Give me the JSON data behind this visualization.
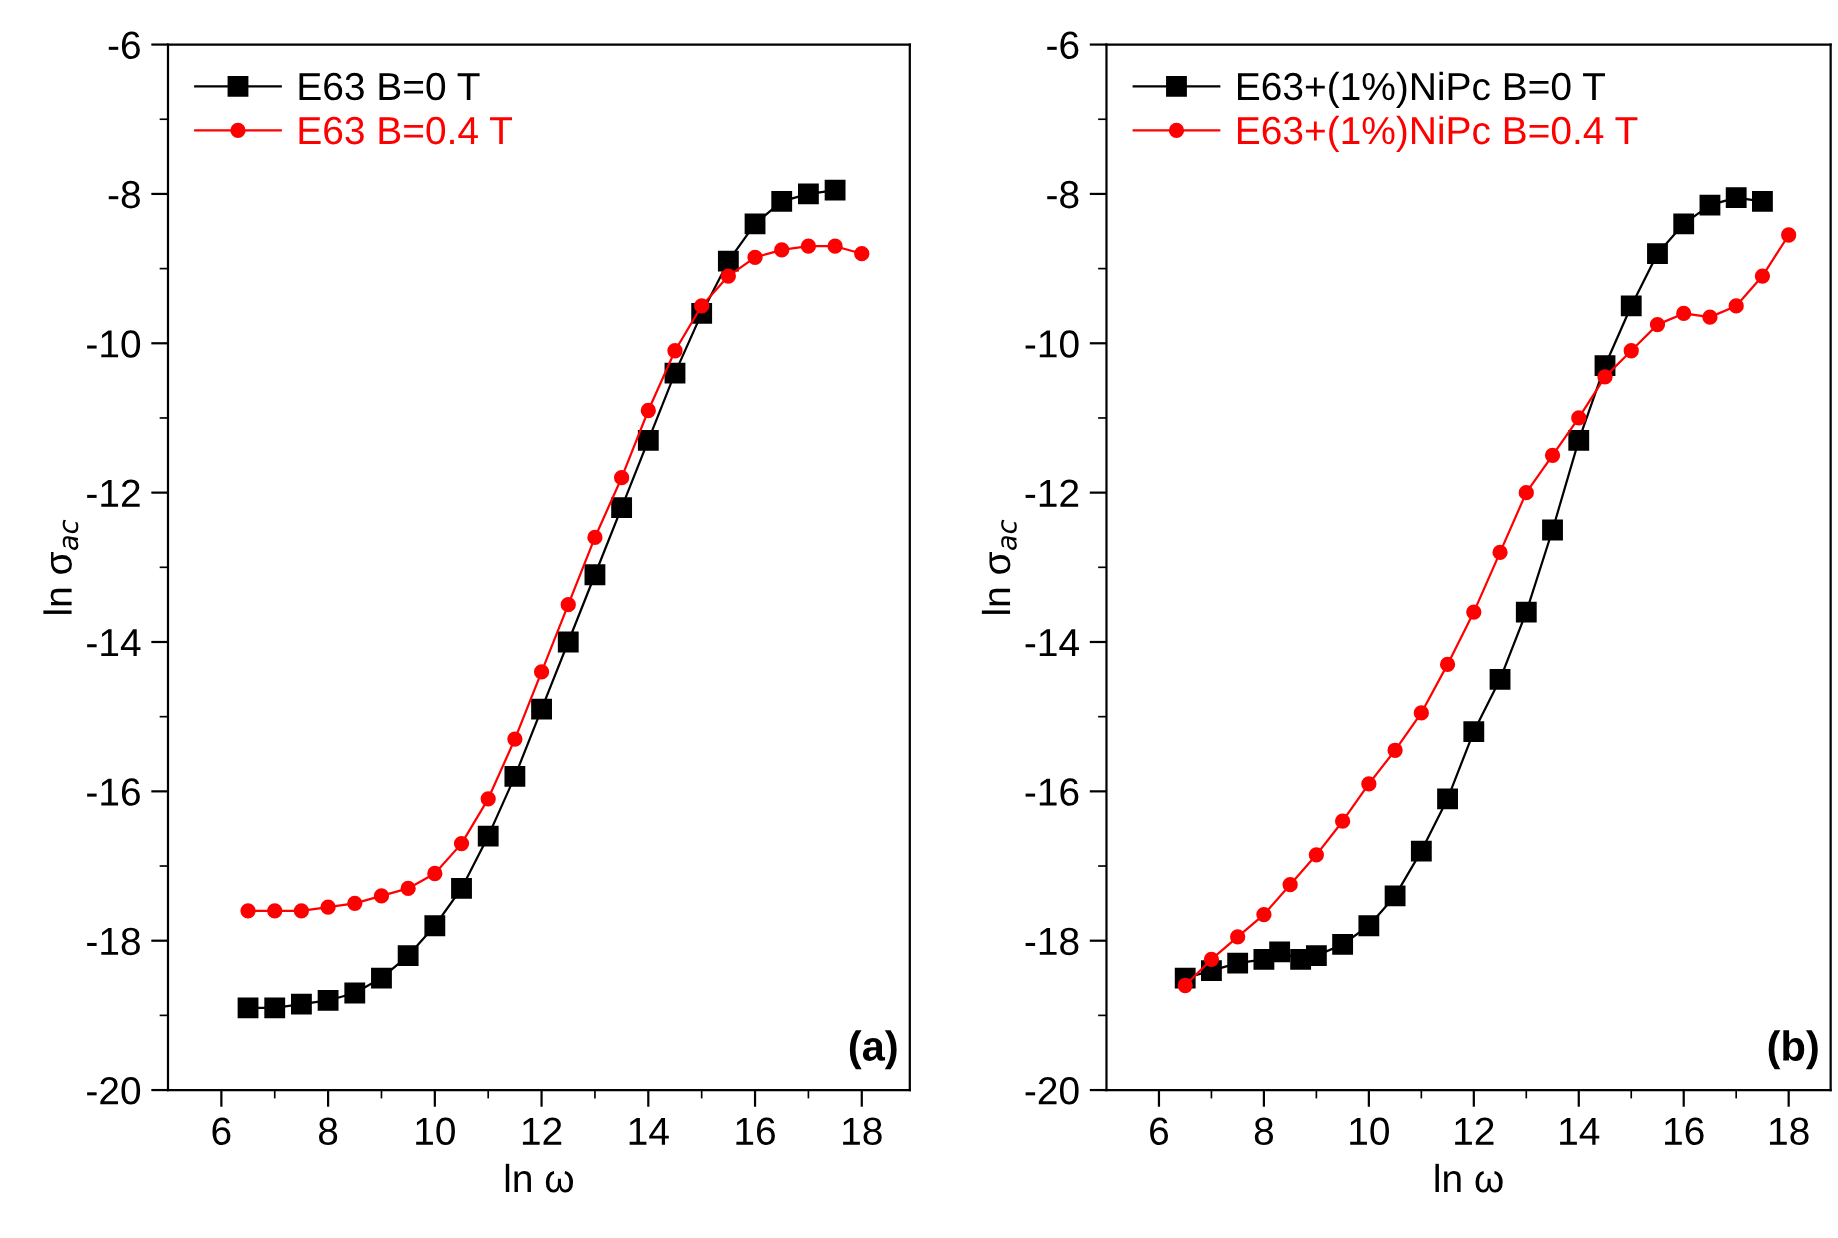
{
  "chart_data": [
    {
      "type": "line",
      "xlabel": "ln ω",
      "ylabel": "ln σ$_{ac}$",
      "xlim": [
        5,
        18.9
      ],
      "ylim": [
        -20,
        -6
      ],
      "xticks": [
        6,
        8,
        10,
        12,
        14,
        16,
        18
      ],
      "yticks": [
        -20,
        -18,
        -16,
        -14,
        -12,
        -10,
        -8,
        -6
      ],
      "grid": false,
      "legend": "top left",
      "annotations": [
        "(a)"
      ],
      "series": [
        {
          "name": "E63 B=0 T",
          "color": "#000000",
          "marker": "square",
          "x": [
            6.5,
            7,
            7.5,
            8,
            8.5,
            9,
            9.5,
            10,
            10.5,
            11,
            11.5,
            12,
            12.5,
            13,
            13.5,
            14,
            14.5,
            15,
            15.5,
            16,
            16.5,
            17,
            17.5
          ],
          "values": [
            -18.9,
            -18.9,
            -18.85,
            -18.8,
            -18.7,
            -18.5,
            -18.2,
            -17.8,
            -17.3,
            -16.6,
            -15.8,
            -14.9,
            -14.0,
            -13.1,
            -12.2,
            -11.3,
            -10.4,
            -9.6,
            -8.9,
            -8.4,
            -8.1,
            -8.0,
            -7.95
          ]
        },
        {
          "name": "E63 B=0.4 T",
          "color": "#ff0000",
          "marker": "circle",
          "x": [
            6.5,
            7,
            7.5,
            8,
            8.5,
            9,
            9.5,
            10,
            10.5,
            11,
            11.5,
            12,
            12.5,
            13,
            13.5,
            14,
            14.5,
            15,
            15.5,
            16,
            16.5,
            17,
            17.5,
            18
          ],
          "values": [
            -17.6,
            -17.6,
            -17.6,
            -17.55,
            -17.5,
            -17.4,
            -17.3,
            -17.1,
            -16.7,
            -16.1,
            -15.3,
            -14.4,
            -13.5,
            -12.6,
            -11.8,
            -10.9,
            -10.1,
            -9.5,
            -9.1,
            -8.85,
            -8.75,
            -8.7,
            -8.7,
            -8.8
          ]
        }
      ]
    },
    {
      "type": "line",
      "xlabel": "ln ω",
      "ylabel": "ln σ$_{ac}$",
      "xlim": [
        5,
        18.8
      ],
      "ylim": [
        -20,
        -6
      ],
      "xticks": [
        6,
        8,
        10,
        12,
        14,
        16,
        18
      ],
      "yticks": [
        -20,
        -18,
        -16,
        -14,
        -12,
        -10,
        -8,
        -6
      ],
      "grid": false,
      "legend": "top left",
      "annotations": [
        "(b)"
      ],
      "series": [
        {
          "name": "E63+(1%)NiPc B=0 T",
          "color": "#000000",
          "marker": "square",
          "x": [
            6.5,
            7,
            7.5,
            8,
            8.3,
            8.7,
            9,
            9.5,
            10,
            10.5,
            11,
            11.5,
            12,
            12.5,
            13,
            13.5,
            14,
            14.5,
            15,
            15.5,
            16,
            16.5,
            17,
            17.5
          ],
          "values": [
            -18.5,
            -18.4,
            -18.3,
            -18.25,
            -18.15,
            -18.25,
            -18.2,
            -18.05,
            -17.8,
            -17.4,
            -16.8,
            -16.1,
            -15.2,
            -14.5,
            -13.6,
            -12.5,
            -11.3,
            -10.3,
            -9.5,
            -8.8,
            -8.4,
            -8.15,
            -8.05,
            -8.1
          ]
        },
        {
          "name": "E63+(1%)NiPc B=0.4 T",
          "color": "#ff0000",
          "marker": "circle",
          "x": [
            6.5,
            7,
            7.5,
            8,
            8.5,
            9,
            9.5,
            10,
            10.5,
            11,
            11.5,
            12,
            12.5,
            13,
            13.5,
            14,
            14.5,
            15,
            15.5,
            16,
            16.5,
            17,
            17.5,
            18
          ],
          "values": [
            -18.6,
            -18.25,
            -17.95,
            -17.65,
            -17.25,
            -16.85,
            -16.4,
            -15.9,
            -15.45,
            -14.95,
            -14.3,
            -13.6,
            -12.8,
            -12.0,
            -11.5,
            -11.0,
            -10.45,
            -10.1,
            -9.75,
            -9.6,
            -9.65,
            -9.5,
            -9.1,
            -8.55
          ]
        }
      ]
    }
  ]
}
